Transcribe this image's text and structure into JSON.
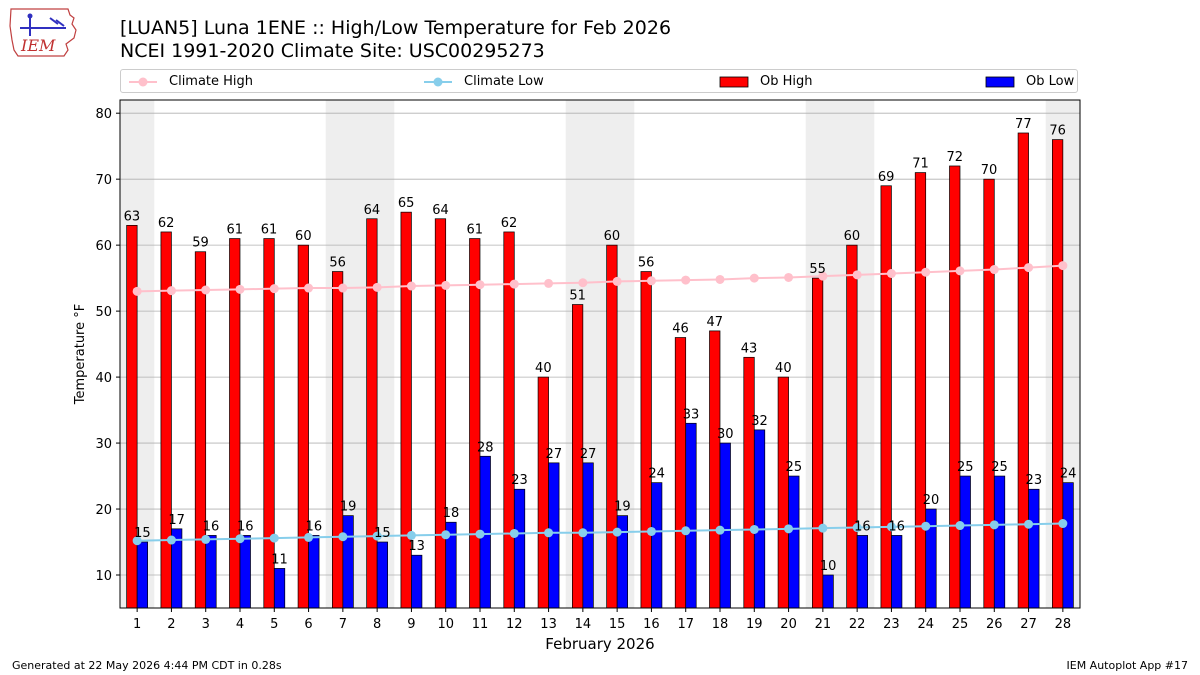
{
  "header": {
    "title_line1": "[LUAN5] Luna 1ENE :: High/Low Temperature for Feb 2026",
    "title_line2": "NCEI 1991-2020 Climate Site: USC00295273",
    "logo_text": "IEM"
  },
  "legend": [
    {
      "label": "Climate High",
      "kind": "line",
      "color": "#ffc0cb"
    },
    {
      "label": "Climate Low",
      "kind": "line",
      "color": "#87ceeb"
    },
    {
      "label": "Ob High",
      "kind": "bar",
      "color": "#ff0000"
    },
    {
      "label": "Ob Low",
      "kind": "bar",
      "color": "#0000ff"
    }
  ],
  "footer": {
    "generated": "Generated at 22 May 2026 4:44 PM CDT in 0.28s",
    "app": "IEM Autoplot App #17"
  },
  "chart_data": {
    "type": "bar",
    "xlabel": "February 2026",
    "ylabel": "Temperature °F",
    "ylim": [
      5,
      82
    ],
    "yticks": [
      10,
      20,
      30,
      40,
      50,
      60,
      70,
      80
    ],
    "grid": "horizontal",
    "legend_position": "top",
    "categories": [
      "1",
      "2",
      "3",
      "4",
      "5",
      "6",
      "7",
      "8",
      "9",
      "10",
      "11",
      "12",
      "13",
      "14",
      "15",
      "16",
      "17",
      "18",
      "19",
      "20",
      "21",
      "22",
      "23",
      "24",
      "25",
      "26",
      "27",
      "28"
    ],
    "weekend_shading_days": [
      1,
      7,
      8,
      14,
      15,
      21,
      22,
      28
    ],
    "series": [
      {
        "name": "Ob High",
        "kind": "bar",
        "color": "#ff0000",
        "values": [
          63,
          62,
          59,
          61,
          61,
          60,
          56,
          64,
          65,
          64,
          61,
          62,
          40,
          51,
          60,
          56,
          46,
          47,
          43,
          40,
          55,
          60,
          69,
          71,
          72,
          70,
          77,
          76
        ]
      },
      {
        "name": "Ob Low",
        "kind": "bar",
        "color": "#0000ff",
        "values": [
          15,
          17,
          16,
          16,
          11,
          16,
          19,
          15,
          13,
          18,
          28,
          23,
          27,
          27,
          19,
          24,
          33,
          30,
          32,
          25,
          10,
          16,
          16,
          20,
          25,
          25,
          23,
          24
        ]
      },
      {
        "name": "Climate High",
        "kind": "line",
        "color": "#ffc0cb",
        "values": [
          53.0,
          53.1,
          53.2,
          53.3,
          53.4,
          53.5,
          53.5,
          53.6,
          53.8,
          53.9,
          54.0,
          54.1,
          54.2,
          54.3,
          54.5,
          54.6,
          54.7,
          54.8,
          55.0,
          55.1,
          55.3,
          55.5,
          55.7,
          55.9,
          56.1,
          56.3,
          56.6,
          56.9
        ]
      },
      {
        "name": "Climate Low",
        "kind": "line",
        "color": "#87ceeb",
        "values": [
          15.2,
          15.3,
          15.4,
          15.5,
          15.6,
          15.7,
          15.8,
          15.9,
          16.0,
          16.1,
          16.2,
          16.3,
          16.4,
          16.4,
          16.5,
          16.6,
          16.7,
          16.8,
          16.9,
          17.0,
          17.1,
          17.2,
          17.3,
          17.4,
          17.5,
          17.6,
          17.7,
          17.8
        ]
      }
    ]
  }
}
